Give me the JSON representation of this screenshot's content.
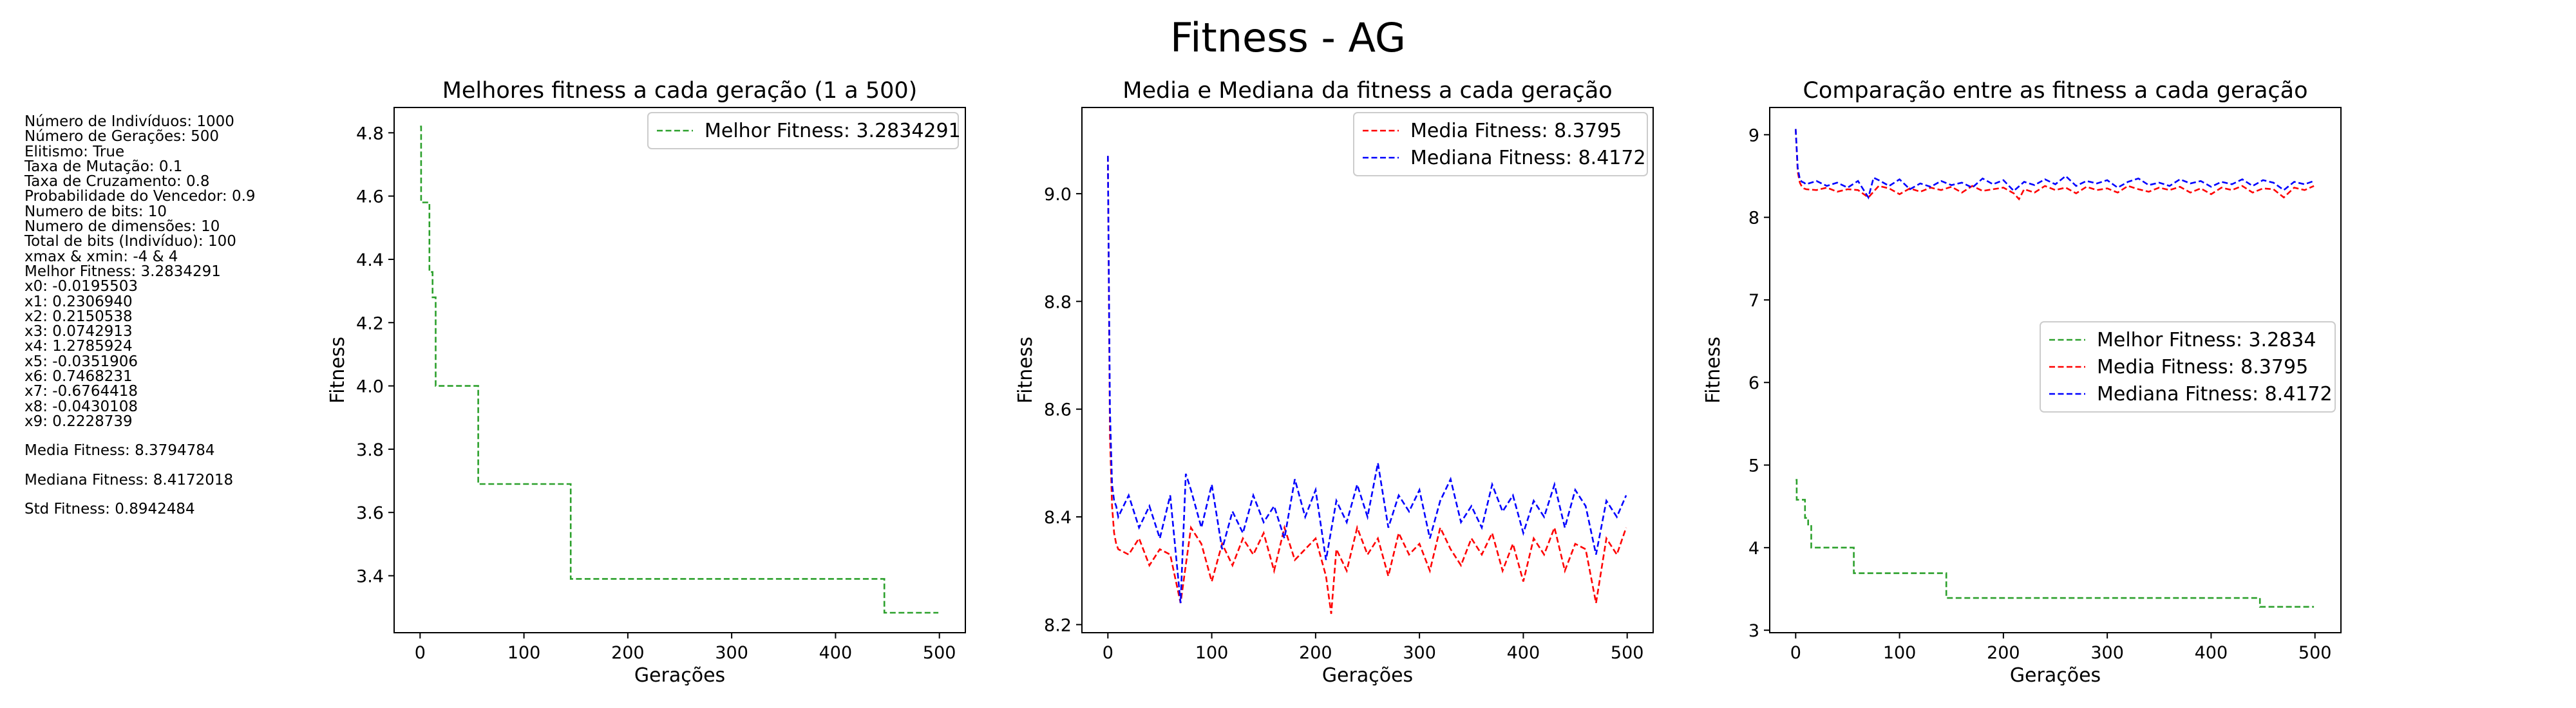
{
  "figure_title": "Fitness - AG",
  "info_panel": {
    "params": [
      "Número de Indivíduos: 1000",
      "Número de Gerações: 500",
      "Elitismo: True",
      "Taxa de Mutação: 0.1",
      "Taxa de Cruzamento: 0.8",
      "Probabilidade do Vencedor: 0.9",
      "Numero de bits: 10",
      "Numero de dimensões: 10",
      "Total de bits (Indivíduo): 100",
      "xmax & xmin: -4 & 4",
      "Melhor Fitness: 3.2834291",
      "x0: -0.0195503",
      "x1: 0.2306940",
      "x2: 0.2150538",
      "x3: 0.0742913",
      "x4: 1.2785924",
      "x5: -0.0351906",
      "x6: 0.7468231",
      "x7: -0.6764418",
      "x8: -0.0430108",
      "x9: 0.2228739"
    ],
    "stats": [
      "Media Fitness: 8.3794784",
      "Mediana Fitness: 8.4172018",
      "Std Fitness: 0.8942484"
    ]
  },
  "colors": {
    "melhor": "#2ca02c",
    "media": "#ff0000",
    "mediana": "#0000ff",
    "axis": "#000000"
  },
  "chart_data": [
    {
      "type": "line",
      "title": "Melhores fitness a cada geração (1 a 500)",
      "xlabel": "Gerações",
      "ylabel": "Fitness",
      "xlim": [
        -25,
        525
      ],
      "ylim": [
        3.22,
        4.88
      ],
      "xticks": [
        0,
        100,
        200,
        300,
        400,
        500
      ],
      "yticks": [
        3.4,
        3.6,
        3.8,
        4.0,
        4.2,
        4.4,
        4.6,
        4.8
      ],
      "ytick_labels": [
        "3.4",
        "3.6",
        "3.8",
        "4.0",
        "4.2",
        "4.4",
        "4.6",
        "4.8"
      ],
      "legend_position": "top-right",
      "series": [
        {
          "name": "Melhor Fitness: 3.2834291",
          "key": "melhor",
          "style": "dashed",
          "x": [
            0,
            1,
            1,
            9,
            9,
            12,
            12,
            15,
            15,
            56,
            56,
            62,
            62,
            145,
            145,
            447,
            447,
            499
          ],
          "y": [
            4.82,
            4.82,
            4.58,
            4.58,
            4.36,
            4.36,
            4.28,
            4.28,
            4.0,
            4.0,
            3.69,
            3.69,
            3.69,
            3.69,
            3.39,
            3.39,
            3.283,
            3.283
          ]
        }
      ]
    },
    {
      "type": "line",
      "title": "Media e Mediana da fitness a cada geração",
      "xlabel": "Gerações",
      "ylabel": "Fitness",
      "xlim": [
        -25,
        525
      ],
      "ylim": [
        8.185,
        9.16
      ],
      "xticks": [
        0,
        100,
        200,
        300,
        400,
        500
      ],
      "yticks": [
        8.2,
        8.4,
        8.6,
        8.8,
        9.0
      ],
      "ytick_labels": [
        "8.2",
        "8.4",
        "8.6",
        "8.8",
        "9.0"
      ],
      "legend_position": "top-right",
      "series": [
        {
          "name": "Media Fitness: 8.3795",
          "key": "media",
          "style": "dashed",
          "x": [
            0,
            2,
            4,
            6,
            8,
            10,
            20,
            30,
            40,
            50,
            60,
            70,
            80,
            90,
            100,
            110,
            120,
            130,
            140,
            150,
            160,
            170,
            180,
            190,
            200,
            210,
            215,
            220,
            230,
            240,
            250,
            260,
            270,
            280,
            290,
            300,
            310,
            320,
            330,
            340,
            350,
            360,
            370,
            380,
            390,
            400,
            410,
            420,
            430,
            440,
            450,
            460,
            470,
            480,
            490,
            499
          ],
          "y": [
            9.07,
            8.55,
            8.42,
            8.37,
            8.35,
            8.34,
            8.33,
            8.36,
            8.31,
            8.34,
            8.33,
            8.24,
            8.38,
            8.35,
            8.28,
            8.35,
            8.31,
            8.36,
            8.33,
            8.37,
            8.3,
            8.38,
            8.32,
            8.34,
            8.36,
            8.29,
            8.22,
            8.34,
            8.3,
            8.38,
            8.33,
            8.36,
            8.29,
            8.37,
            8.33,
            8.35,
            8.3,
            8.38,
            8.34,
            8.31,
            8.36,
            8.33,
            8.37,
            8.3,
            8.35,
            8.28,
            8.36,
            8.33,
            8.38,
            8.3,
            8.35,
            8.34,
            8.24,
            8.36,
            8.33,
            8.38
          ]
        },
        {
          "name": "Mediana Fitness: 8.4172",
          "key": "mediana",
          "style": "dashed",
          "x": [
            0,
            2,
            4,
            6,
            8,
            10,
            20,
            30,
            40,
            50,
            60,
            70,
            75,
            80,
            90,
            100,
            110,
            120,
            130,
            140,
            150,
            160,
            170,
            180,
            190,
            200,
            210,
            220,
            230,
            240,
            250,
            260,
            270,
            280,
            290,
            300,
            310,
            320,
            330,
            340,
            350,
            360,
            370,
            380,
            390,
            400,
            410,
            420,
            430,
            440,
            450,
            460,
            470,
            480,
            490,
            499
          ],
          "y": [
            9.07,
            8.6,
            8.46,
            8.43,
            8.42,
            8.4,
            8.44,
            8.38,
            8.42,
            8.36,
            8.44,
            8.24,
            8.48,
            8.45,
            8.38,
            8.46,
            8.34,
            8.41,
            8.37,
            8.44,
            8.39,
            8.42,
            8.36,
            8.47,
            8.4,
            8.45,
            8.32,
            8.43,
            8.39,
            8.46,
            8.4,
            8.5,
            8.38,
            8.44,
            8.41,
            8.45,
            8.36,
            8.43,
            8.47,
            8.39,
            8.42,
            8.38,
            8.46,
            8.41,
            8.44,
            8.37,
            8.43,
            8.4,
            8.46,
            8.38,
            8.45,
            8.42,
            8.33,
            8.43,
            8.4,
            8.44
          ]
        }
      ]
    },
    {
      "type": "line",
      "title": "Comparação entre as fitness a cada geração",
      "xlabel": "Gerações",
      "ylabel": "Fitness",
      "xlim": [
        -25,
        525
      ],
      "ylim": [
        2.97,
        9.33
      ],
      "xticks": [
        0,
        100,
        200,
        300,
        400,
        500
      ],
      "yticks": [
        3,
        4,
        5,
        6,
        7,
        8,
        9
      ],
      "ytick_labels": [
        "3",
        "4",
        "5",
        "6",
        "7",
        "8",
        "9"
      ],
      "legend_position": "center-right",
      "series": [
        {
          "name": "Melhor Fitness: 3.2834",
          "key": "melhor",
          "style": "dashed",
          "x": [
            0,
            1,
            1,
            9,
            9,
            12,
            12,
            15,
            15,
            56,
            56,
            62,
            62,
            145,
            145,
            447,
            447,
            499
          ],
          "y": [
            4.82,
            4.82,
            4.58,
            4.58,
            4.36,
            4.36,
            4.28,
            4.28,
            4.0,
            4.0,
            3.69,
            3.69,
            3.69,
            3.69,
            3.39,
            3.39,
            3.283,
            3.283
          ]
        },
        {
          "name": "Media Fitness: 8.3795",
          "key": "media",
          "style": "dashed",
          "x": [
            0,
            2,
            4,
            6,
            8,
            10,
            20,
            30,
            40,
            50,
            60,
            70,
            80,
            90,
            100,
            110,
            120,
            130,
            140,
            150,
            160,
            170,
            180,
            190,
            200,
            210,
            215,
            220,
            230,
            240,
            250,
            260,
            270,
            280,
            290,
            300,
            310,
            320,
            330,
            340,
            350,
            360,
            370,
            380,
            390,
            400,
            410,
            420,
            430,
            440,
            450,
            460,
            470,
            480,
            490,
            499
          ],
          "y": [
            9.07,
            8.55,
            8.42,
            8.37,
            8.35,
            8.34,
            8.33,
            8.36,
            8.31,
            8.34,
            8.33,
            8.24,
            8.38,
            8.35,
            8.28,
            8.35,
            8.31,
            8.36,
            8.33,
            8.37,
            8.3,
            8.38,
            8.32,
            8.34,
            8.36,
            8.29,
            8.22,
            8.34,
            8.3,
            8.38,
            8.33,
            8.36,
            8.29,
            8.37,
            8.33,
            8.35,
            8.3,
            8.38,
            8.34,
            8.31,
            8.36,
            8.33,
            8.37,
            8.3,
            8.35,
            8.28,
            8.36,
            8.33,
            8.38,
            8.3,
            8.35,
            8.34,
            8.24,
            8.36,
            8.33,
            8.38
          ]
        },
        {
          "name": "Mediana Fitness: 8.4172",
          "key": "mediana",
          "style": "dashed",
          "x": [
            0,
            2,
            4,
            6,
            8,
            10,
            20,
            30,
            40,
            50,
            60,
            70,
            75,
            80,
            90,
            100,
            110,
            120,
            130,
            140,
            150,
            160,
            170,
            180,
            190,
            200,
            210,
            220,
            230,
            240,
            250,
            260,
            270,
            280,
            290,
            300,
            310,
            320,
            330,
            340,
            350,
            360,
            370,
            380,
            390,
            400,
            410,
            420,
            430,
            440,
            450,
            460,
            470,
            480,
            490,
            499
          ],
          "y": [
            9.07,
            8.6,
            8.46,
            8.43,
            8.42,
            8.4,
            8.44,
            8.38,
            8.42,
            8.36,
            8.44,
            8.24,
            8.48,
            8.45,
            8.38,
            8.46,
            8.34,
            8.41,
            8.37,
            8.44,
            8.39,
            8.42,
            8.36,
            8.47,
            8.4,
            8.45,
            8.32,
            8.43,
            8.39,
            8.46,
            8.4,
            8.5,
            8.38,
            8.44,
            8.41,
            8.45,
            8.36,
            8.43,
            8.47,
            8.39,
            8.42,
            8.38,
            8.46,
            8.41,
            8.44,
            8.37,
            8.43,
            8.4,
            8.46,
            8.38,
            8.45,
            8.42,
            8.33,
            8.43,
            8.4,
            8.44
          ]
        }
      ]
    }
  ]
}
